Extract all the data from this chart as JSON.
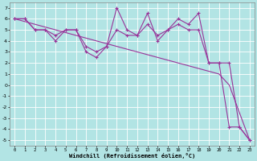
{
  "xlabel": "Windchill (Refroidissement éolien,°C)",
  "bg_color": "#b2e4e4",
  "grid_color": "#c8ecec",
  "line_color": "#993399",
  "xlim": [
    -0.5,
    23.5
  ],
  "ylim": [
    -5.5,
    7.5
  ],
  "xticks": [
    0,
    1,
    2,
    3,
    4,
    5,
    6,
    7,
    8,
    9,
    10,
    11,
    12,
    13,
    14,
    15,
    16,
    17,
    18,
    19,
    20,
    21,
    22,
    23
  ],
  "yticks": [
    -5,
    -4,
    -3,
    -2,
    -1,
    0,
    1,
    2,
    3,
    4,
    5,
    6,
    7
  ],
  "series1_x": [
    0,
    1,
    2,
    3,
    4,
    5,
    6,
    7,
    8,
    9,
    10,
    11,
    12,
    13,
    14,
    15,
    16,
    17,
    18,
    19,
    20,
    21,
    22,
    23
  ],
  "series1_y": [
    6.0,
    5.75,
    5.5,
    5.25,
    5.0,
    4.75,
    4.5,
    4.25,
    4.0,
    3.75,
    3.5,
    3.25,
    3.0,
    2.75,
    2.5,
    2.25,
    2.0,
    1.75,
    1.5,
    1.25,
    1.0,
    0.0,
    -2.5,
    -5.0
  ],
  "series2_x": [
    0,
    1,
    2,
    3,
    4,
    5,
    6,
    7,
    8,
    9,
    10,
    11,
    12,
    13,
    14,
    15,
    16,
    17,
    18,
    19,
    20,
    21,
    22,
    23
  ],
  "series2_y": [
    6,
    6,
    5,
    5,
    4,
    5,
    5,
    3,
    2.5,
    3.5,
    7,
    5,
    4.5,
    6.5,
    4,
    5,
    6,
    5.5,
    6.5,
    2,
    2,
    -3.8,
    -3.8,
    -5
  ],
  "series3_x": [
    0,
    1,
    2,
    3,
    4,
    5,
    6,
    7,
    8,
    9,
    10,
    11,
    12,
    13,
    14,
    15,
    16,
    17,
    18,
    19,
    20,
    21,
    22,
    23
  ],
  "series3_y": [
    6,
    6,
    5,
    5,
    4.5,
    5,
    5,
    3.5,
    3,
    3.5,
    5,
    4.5,
    4.5,
    5.5,
    4.5,
    5,
    5.5,
    5,
    5,
    2,
    2,
    2,
    -3.8,
    -5
  ]
}
